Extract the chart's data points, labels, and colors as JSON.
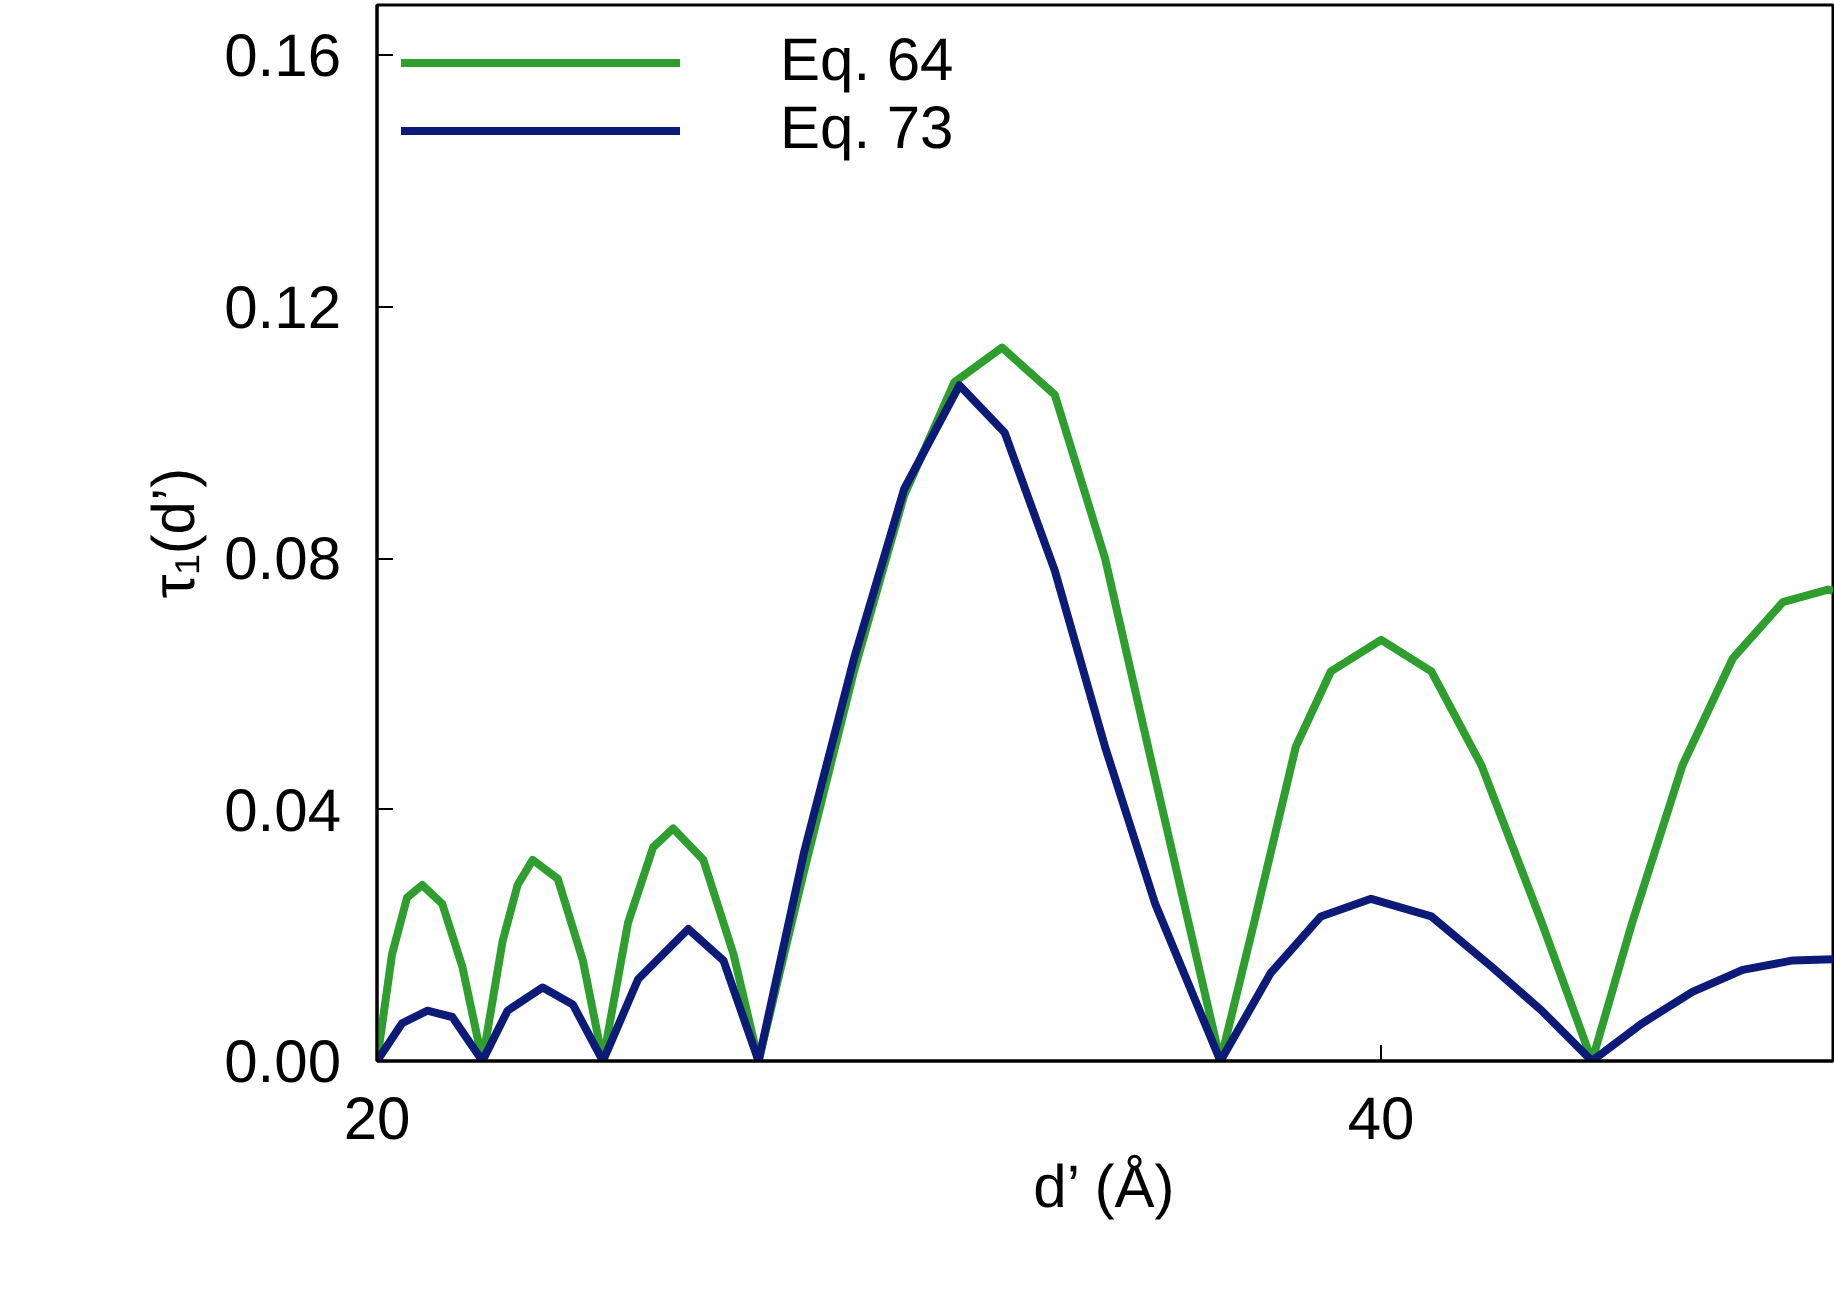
{
  "chart_data": {
    "type": "line",
    "xlabel": "d’ (Å)",
    "ylabel": "τ₁(d’)",
    "xlim": [
      20,
      49
    ],
    "ylim": [
      0,
      0.168
    ],
    "xticks": [
      20,
      40
    ],
    "yticks": [
      {
        "value": 0,
        "label": "0.00"
      },
      {
        "value": 0.04,
        "label": "0.04"
      },
      {
        "value": 0.08,
        "label": "0.08"
      },
      {
        "value": 0.12,
        "label": "0.12"
      },
      {
        "value": 0.16,
        "label": "0.16"
      }
    ],
    "grid": false,
    "legend": "top left",
    "line_style": "solid",
    "marker": "none",
    "series": [
      {
        "name": "Eq. 64",
        "color": "#2e9e2e",
        "x": [
          20,
          20.3,
          20.6,
          20.9,
          21.3,
          21.7,
          22.1,
          22.5,
          22.8,
          23.1,
          23.6,
          24.1,
          24.5,
          25.0,
          25.5,
          25.9,
          26.5,
          27.1,
          27.6,
          28.5,
          29.5,
          30.5,
          31.5,
          32.45,
          33.5,
          34.5,
          35.5,
          36.8,
          37.5,
          38.3,
          39.0,
          40.0,
          41.0,
          42.0,
          43.2,
          44.2,
          45.0,
          46.0,
          47.0,
          48.0,
          48.9,
          49.0
        ],
        "values": [
          0,
          0.017,
          0.026,
          0.028,
          0.025,
          0.015,
          0,
          0.019,
          0.028,
          0.032,
          0.029,
          0.016,
          0,
          0.022,
          0.034,
          0.037,
          0.032,
          0.017,
          0,
          0.03,
          0.062,
          0.09,
          0.108,
          0.1135,
          0.106,
          0.08,
          0.045,
          0,
          0.023,
          0.05,
          0.062,
          0.067,
          0.062,
          0.047,
          0.022,
          0,
          0.022,
          0.047,
          0.064,
          0.073,
          0.075,
          0.0748
        ]
      },
      {
        "name": "Eq. 73",
        "color": "#0d1b78",
        "x": [
          20,
          20.5,
          21.0,
          21.5,
          22.1,
          22.6,
          23.3,
          23.9,
          24.5,
          25.2,
          26.2,
          26.9,
          27.6,
          28.5,
          29.5,
          30.5,
          31.6,
          32.5,
          33.5,
          34.5,
          35.5,
          36.8,
          37.8,
          38.8,
          39.8,
          41.0,
          42.2,
          43.2,
          44.2,
          45.2,
          46.2,
          47.2,
          48.2,
          49.0
        ],
        "values": [
          0,
          0.006,
          0.008,
          0.007,
          0,
          0.008,
          0.0117,
          0.009,
          0,
          0.013,
          0.021,
          0.016,
          0,
          0.033,
          0.064,
          0.091,
          0.1075,
          0.1,
          0.078,
          0.05,
          0.025,
          0,
          0.014,
          0.023,
          0.0258,
          0.023,
          0.015,
          0.008,
          0,
          0.006,
          0.011,
          0.0145,
          0.016,
          0.0162
        ]
      }
    ]
  }
}
